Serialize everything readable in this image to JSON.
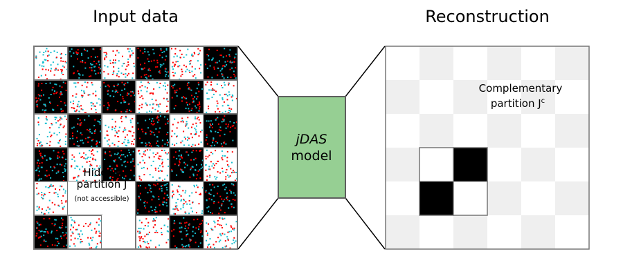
{
  "input_panel": {
    "title": "Input data",
    "hidden_label_line1": "Hidden",
    "hidden_label_line2": "partition J",
    "hidden_note": "(not accessible)",
    "hidden_cells": [
      [
        4,
        1
      ],
      [
        4,
        2
      ],
      [
        5,
        2
      ]
    ]
  },
  "model": {
    "line1": "jDAS",
    "line2": "model",
    "fill_color": "#96cf93"
  },
  "output_panel": {
    "title": "Reconstruction",
    "label_line1": "Complementary",
    "label_line2": "partition J",
    "label_superscript": "c",
    "revealed_cells": [
      {
        "row": 3,
        "col": 1,
        "color": "white"
      },
      {
        "row": 3,
        "col": 2,
        "color": "black"
      },
      {
        "row": 4,
        "col": 1,
        "color": "black"
      },
      {
        "row": 4,
        "col": 2,
        "color": "white"
      }
    ]
  },
  "grid": {
    "rows": 6,
    "cols": 6
  },
  "colors": {
    "dot_red": "#ff0000",
    "dot_cyan": "#17becf",
    "cell_black": "#000000",
    "faint_cell": "#efefef",
    "frame": "#777777"
  }
}
